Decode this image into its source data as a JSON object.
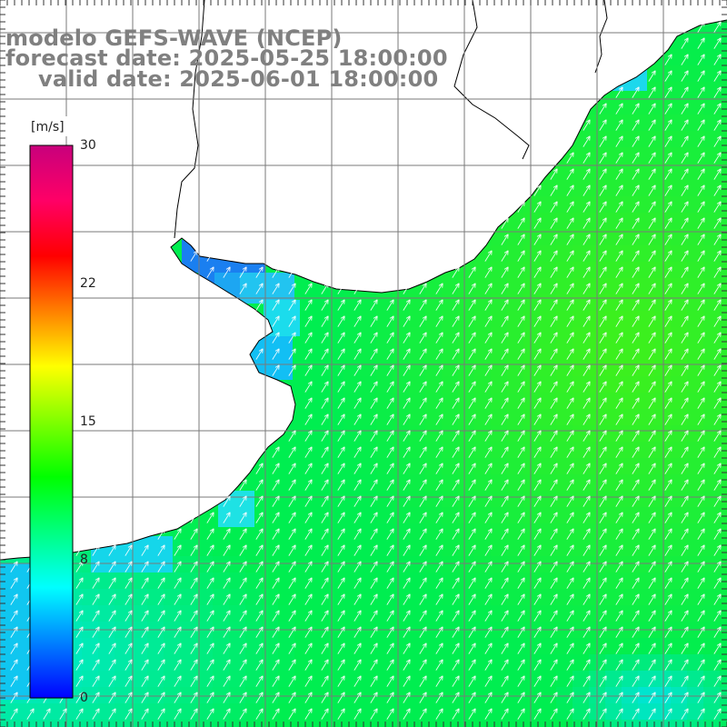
{
  "title": {
    "model": "modelo GEFS-WAVE (NCEP)",
    "forecast": "forecast date: 2025-05-25 18:00:00",
    "valid": "valid date: 2025-06-01 18:00:00"
  },
  "colorbar": {
    "unit": "[m/s]",
    "ticks": [
      "30",
      "22",
      "15",
      "8",
      "0"
    ],
    "range": [
      0,
      30
    ],
    "stops": [
      "#0000ff",
      "#0080ff",
      "#00ffff",
      "#00ff80",
      "#00ff00",
      "#80ff00",
      "#ffff00",
      "#ff8000",
      "#ff0000",
      "#ff0066",
      "#c8007c"
    ]
  },
  "colors": {
    "ocean_high": "#3cf01e",
    "ocean_mid": "#00ee50",
    "ocean_low": "#00e8d8",
    "coast_blue": "#1a7ff0",
    "land": "#ffffff",
    "coastline": "#000000",
    "grid": "#7a7a7a",
    "arrows": "#ffffff"
  },
  "field": {
    "variable": "wind speed",
    "arrow_direction": "toward north-east"
  }
}
